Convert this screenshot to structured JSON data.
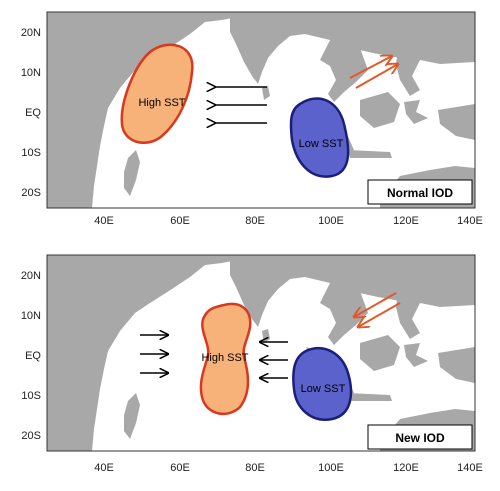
{
  "colors": {
    "land": "#a8a8a8",
    "ocean": "#ffffff",
    "high_sst_fill": "#f7b27a",
    "high_sst_stroke": "#d9381e",
    "low_sst_fill": "#5b62cc",
    "low_sst_stroke": "#1b1f7a",
    "wind_arrow": "#000000",
    "ne_arrow": "#e0592a"
  },
  "axes": {
    "lat_ticks": [
      "20N",
      "10N",
      "EQ",
      "10S",
      "20S"
    ],
    "lon_ticks": [
      "40E",
      "60E",
      "80E",
      "100E",
      "120E",
      "140E"
    ]
  },
  "panels": [
    {
      "legend": "Normal IOD",
      "high_sst_label": "High SST",
      "low_sst_label": "Low SST",
      "wind_arrows": "westward-arrows",
      "ne_arrows": "northeast-arrows"
    },
    {
      "legend": "New IOD",
      "high_sst_label": "High SST",
      "low_sst_label": "Low SST",
      "wind_arrows": "converging-arrows",
      "ne_arrows": "southwest-arrows"
    }
  ]
}
